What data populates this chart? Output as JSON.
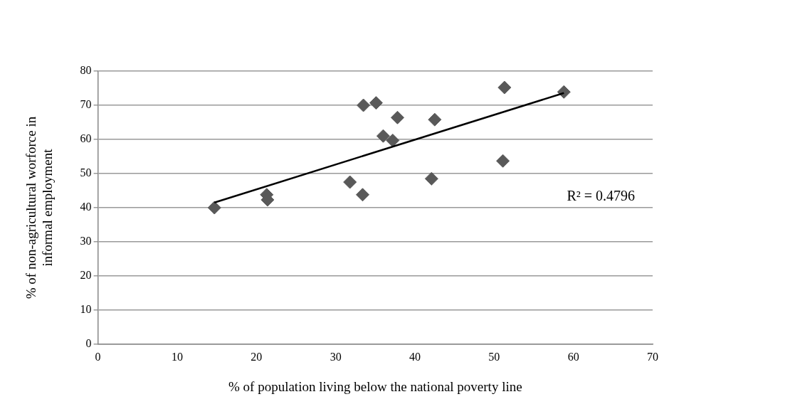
{
  "chart_data": {
    "type": "scatter",
    "xlabel": "% of population living below the national poverty line",
    "ylabel": "% of non-agricultural worforce in informal employment",
    "xlim": [
      0,
      70
    ],
    "xticks": [
      0,
      10,
      20,
      30,
      40,
      50,
      60,
      70
    ],
    "ylim": [
      0,
      80
    ],
    "yticks": [
      0,
      10,
      20,
      30,
      40,
      50,
      60,
      70,
      80
    ],
    "grid": "y",
    "legend": false,
    "marker": "diamond",
    "annotations": [
      "R² = 0.4796"
    ],
    "series": [
      {
        "color": "#595959",
        "x": [
          14.7,
          21.3,
          21.4,
          31.8,
          33.4,
          33.5,
          35.1,
          36,
          37.2,
          37.8,
          42.1,
          42.5,
          51.1,
          51.3,
          58.8
        ],
        "values": [
          40,
          43.8,
          42.3,
          47.5,
          43.8,
          70,
          70.7,
          61,
          59.7,
          66.4,
          48.5,
          65.8,
          53.7,
          75.2,
          73.9
        ]
      },
      {
        "type": "line",
        "color": "#000000",
        "marker": "none",
        "x": [
          14.7,
          58.8
        ],
        "values": [
          41.5,
          73.6
        ]
      }
    ]
  }
}
